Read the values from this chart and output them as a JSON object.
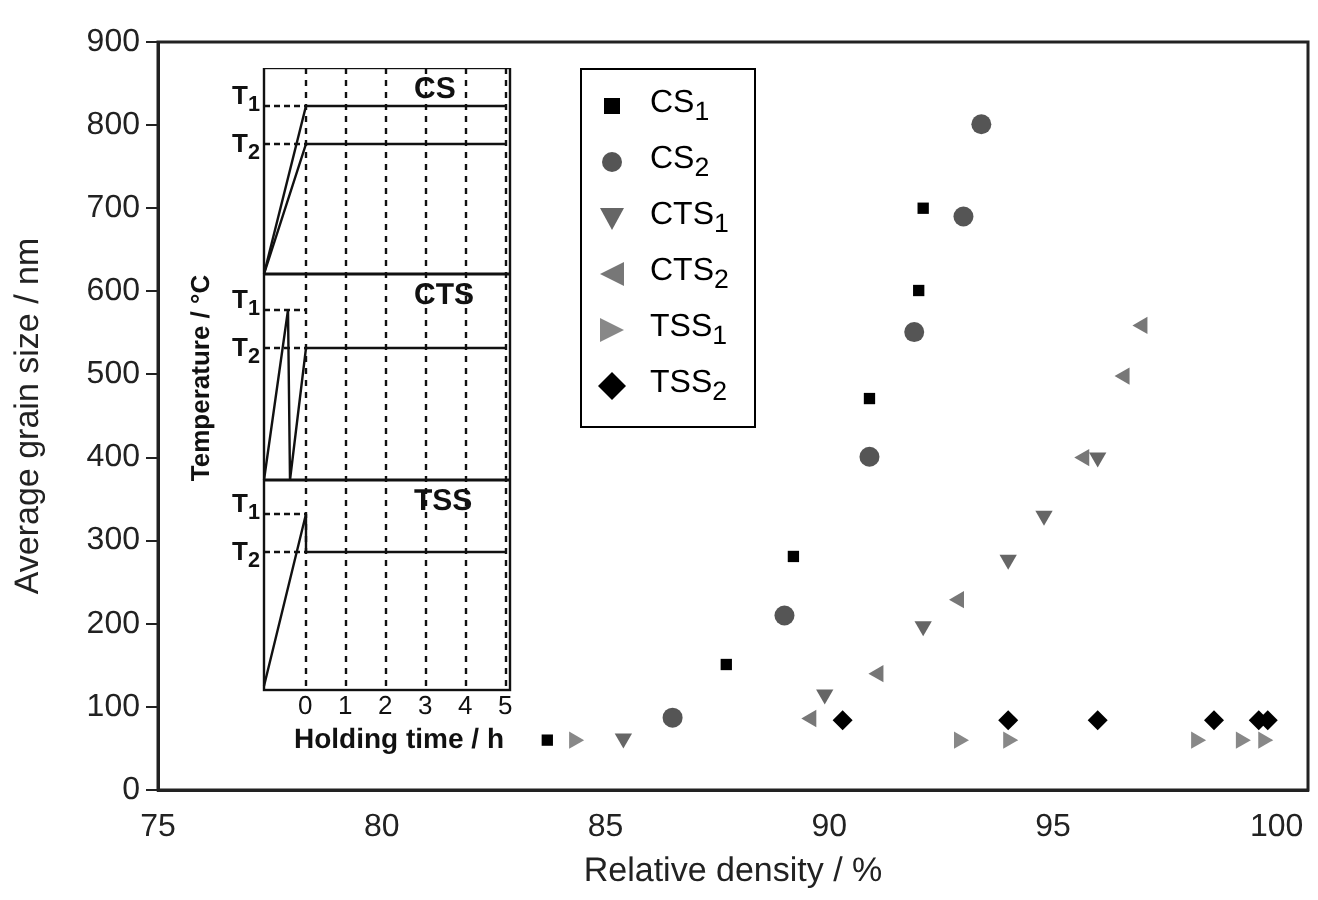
{
  "chart_data": {
    "type": "scatter",
    "xlabel": "Relative density / %",
    "ylabel": "Average grain size / nm",
    "xlim": [
      75,
      100.7
    ],
    "xticks": [
      75,
      80,
      85,
      90,
      95,
      100
    ],
    "ylim": [
      0,
      900
    ],
    "yticks": [
      0,
      100,
      200,
      300,
      400,
      500,
      600,
      700,
      800,
      900
    ],
    "grid": false,
    "legend": "top",
    "series": [
      {
        "name": "CS$_{1}$",
        "color": "#000000",
        "marker": "square",
        "x": [
          83.7,
          87.7,
          89.2,
          90.9,
          92.0,
          92.1
        ],
        "values": [
          60,
          151,
          281,
          471,
          601,
          700
        ]
      },
      {
        "name": "CS$_{2}$",
        "color": "#555555",
        "marker": "circle",
        "x": [
          86.5,
          89.0,
          90.9,
          91.9,
          93.0,
          93.4
        ],
        "values": [
          87,
          210,
          401,
          551,
          690,
          801
        ]
      },
      {
        "name": "CTS$_{1}$",
        "color": "#666666",
        "marker": "triangle-down",
        "x": [
          85.4,
          89.9,
          92.1,
          94.0,
          94.8,
          96.0
        ],
        "values": [
          62,
          115,
          197,
          277,
          330,
          400
        ]
      },
      {
        "name": "CTS$_{2}$",
        "color": "#777777",
        "marker": "triangle-left",
        "x": [
          89.6,
          91.1,
          92.9,
          95.7,
          96.6,
          97.0
        ],
        "values": [
          86,
          140,
          229,
          400,
          498,
          559
        ]
      },
      {
        "name": "TSS$_{1}$",
        "color": "#888888",
        "marker": "triangle-right",
        "x": [
          84.3,
          92.9,
          94.0,
          98.2,
          99.2,
          99.7
        ],
        "values": [
          60,
          60,
          60,
          60,
          60,
          60
        ]
      },
      {
        "name": "TSS$_{2}$",
        "color": "#000000",
        "marker": "diamond",
        "x": [
          90.3,
          94.0,
          96.0,
          98.6,
          99.6,
          99.8
        ],
        "values": [
          84,
          84,
          84,
          84,
          84,
          84
        ]
      }
    ],
    "annotations": [
      "CS",
      "CTS",
      "TSS",
      "T$_{1}$",
      "T$_{2}$",
      "T$_{1}$",
      "T$_{2}$",
      "T$_{1}$",
      "T$_{2}$",
      "Temperature / °C",
      "0",
      "1",
      "2",
      "3",
      "4",
      "5",
      "Holding time / h"
    ]
  }
}
